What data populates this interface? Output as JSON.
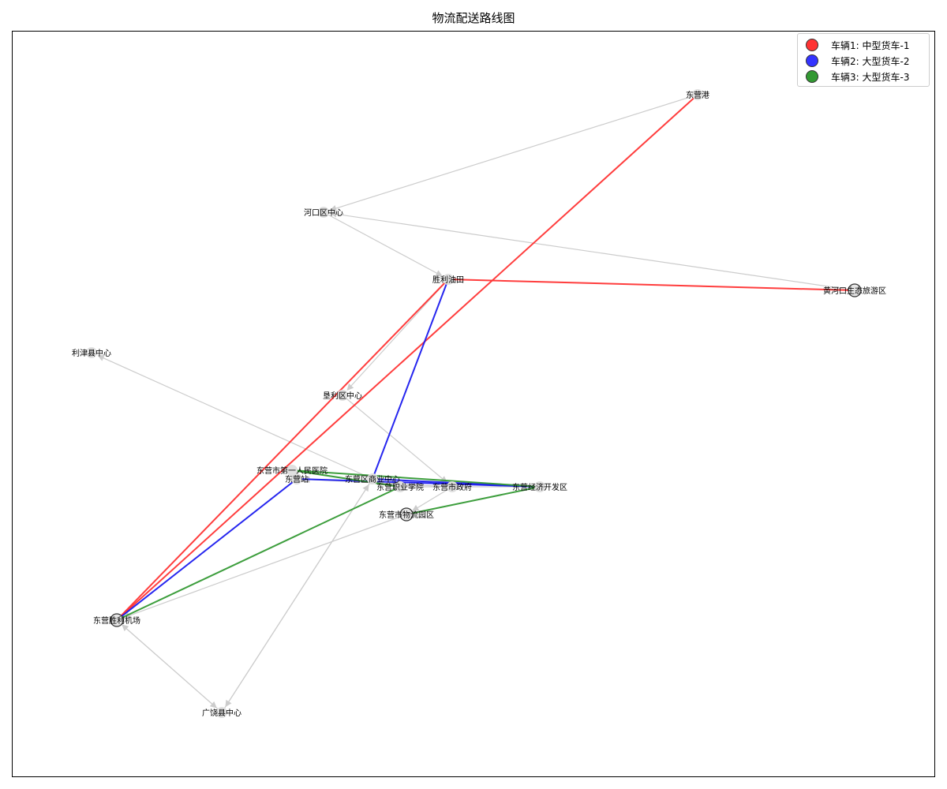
{
  "title": "物流配送路线图",
  "legend": [
    {
      "label": "车辆1: 中型货车-1",
      "color": "#ff3333"
    },
    {
      "label": "车辆2: 大型货车-2",
      "color": "#3333ff"
    },
    {
      "label": "车辆3: 大型货车-3",
      "color": "#339933"
    }
  ],
  "nodes": {
    "dongying_port": "东营港",
    "hekou": "河口区中心",
    "shengli_oilfield": "胜利油田",
    "yellow_river_mouth": "黄河口生态旅游区",
    "lijin": "利津县中心",
    "kenli": "垦利区中心",
    "hospital": "东营市第一人民医院",
    "dongying_station": "东营站",
    "business_center": "东营区商业中心",
    "vocational_college": "东营职业学院",
    "city_government": "东营市政府",
    "economic_zone": "东营经济开发区",
    "logistics_park": "东营市物流园区",
    "airport": "东营胜利机场",
    "guangrao": "广饶县中心"
  }
}
